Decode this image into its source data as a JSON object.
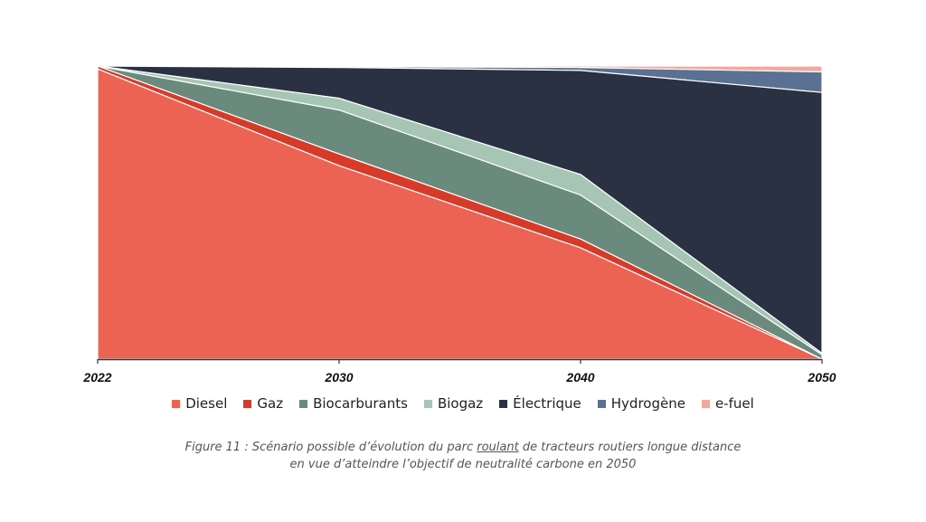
{
  "chart_data": {
    "type": "area",
    "stacked": true,
    "normalized_percent": true,
    "x": [
      "2022",
      "2030",
      "2040",
      "2050"
    ],
    "series": [
      {
        "name": "Diesel",
        "color": "#EC6354",
        "values": [
          99,
          66,
          38,
          0
        ]
      },
      {
        "name": "Gaz",
        "color": "#D63B2A",
        "values": [
          1,
          4,
          3,
          0
        ]
      },
      {
        "name": "Biocarburants",
        "color": "#6A8A7E",
        "values": [
          0,
          15,
          15,
          1.5
        ]
      },
      {
        "name": "Biogaz",
        "color": "#A6C5B5",
        "values": [
          0,
          4,
          7,
          0.5
        ]
      },
      {
        "name": "Électrique",
        "color": "#293142",
        "values": [
          0,
          10.5,
          35.5,
          89
        ]
      },
      {
        "name": "Hydrogène",
        "color": "#5B7193",
        "values": [
          0,
          0.3,
          1,
          7
        ]
      },
      {
        "name": "e-fuel",
        "color": "#F2A89C",
        "values": [
          0,
          0.2,
          0.5,
          2
        ]
      }
    ],
    "ylim": [
      0,
      100
    ],
    "legend_position": "bottom",
    "grid": false
  },
  "caption": {
    "part1": "Figure 11 : Scénario possible d’évolution du parc ",
    "underlined": "roulant",
    "part2": " de tracteurs routiers longue distance",
    "line2": "en vue d’atteindre l’objectif de neutralité carbone en 2050"
  }
}
